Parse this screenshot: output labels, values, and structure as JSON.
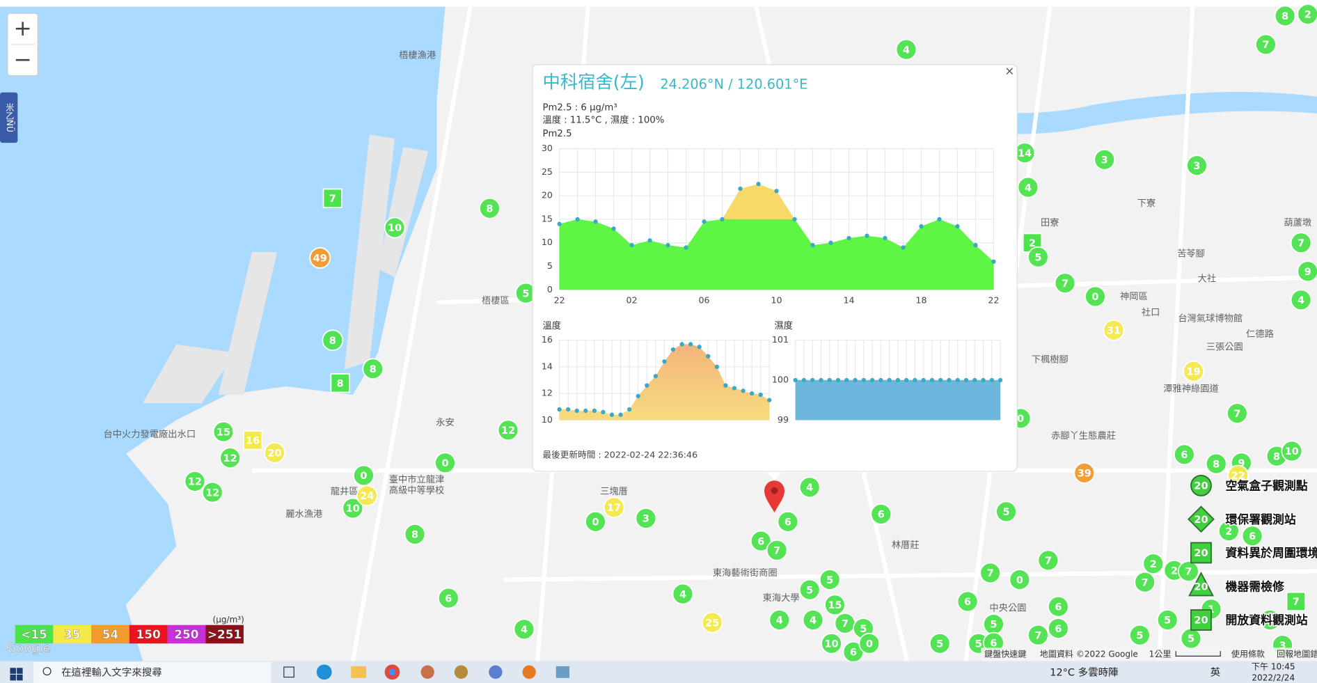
{
  "map": {
    "side_tab": "米乙ÑÜ",
    "zoom_in": "+",
    "zoom_out": "−",
    "google_logo": "Google",
    "labels": [
      "梧棲漁港",
      "梧棲區",
      "永安",
      "台中火力發電廠出水口",
      "龍井區",
      "臺中市立龍津",
      "高級中等學校",
      "麗水漁港",
      "三塊厝",
      "東海藝術街商圈",
      "東海大學",
      "林厝莊",
      "中央公園",
      "神岡區",
      "社口",
      "下寮",
      "田寮",
      "大社",
      "三張公園",
      "下楓樹腳",
      "赤腳丫生態農莊",
      "仁德路",
      "台灣氣球博物館",
      "苦苓腳",
      "潭雅神綠園道",
      "葫蘆墩"
    ],
    "markers": [
      {
        "value": 4
      },
      {
        "value": 8
      },
      {
        "value": 2
      },
      {
        "value": 7
      },
      {
        "value": 14
      },
      {
        "value": 3
      },
      {
        "value": 3
      },
      {
        "value": 4
      },
      {
        "value": 2,
        "shape": "square"
      },
      {
        "value": 5
      },
      {
        "value": 7
      },
      {
        "value": 9
      },
      {
        "value": 4
      },
      {
        "value": 7
      },
      {
        "value": 0
      },
      {
        "value": 31
      },
      {
        "value": 19
      },
      {
        "value": 7
      },
      {
        "value": 0
      },
      {
        "value": 6
      },
      {
        "value": 8
      },
      {
        "value": 9
      },
      {
        "value": 8
      },
      {
        "value": 10
      },
      {
        "value": 22
      },
      {
        "value": 39
      },
      {
        "value": 5
      },
      {
        "value": 7
      },
      {
        "value": 7
      },
      {
        "value": 0
      },
      {
        "value": 6
      },
      {
        "value": 5
      },
      {
        "value": 6
      },
      {
        "value": 7
      },
      {
        "value": 6
      },
      {
        "value": 5
      },
      {
        "value": 5
      },
      {
        "value": 6
      },
      {
        "value": 2
      },
      {
        "value": 6
      },
      {
        "value": 2
      },
      {
        "value": 2
      },
      {
        "value": 7
      },
      {
        "value": 7
      },
      {
        "value": 1
      },
      {
        "value": 5
      },
      {
        "value": 5
      },
      {
        "value": 5
      },
      {
        "value": 3
      },
      {
        "value": 7,
        "shape": "square"
      },
      {
        "value": 7
      },
      {
        "value": 6
      },
      {
        "value": 4
      },
      {
        "value": 6
      },
      {
        "value": 6
      },
      {
        "value": 7
      },
      {
        "value": 5
      },
      {
        "value": 5
      },
      {
        "value": 15
      },
      {
        "value": 4
      },
      {
        "value": 4
      },
      {
        "value": 7
      },
      {
        "value": 5
      },
      {
        "value": 10
      },
      {
        "value": 6
      },
      {
        "value": 0
      },
      {
        "value": 4
      },
      {
        "value": 25
      },
      {
        "value": 3
      },
      {
        "value": 17
      },
      {
        "value": 0
      },
      {
        "value": 4
      },
      {
        "value": 6
      },
      {
        "value": 8
      },
      {
        "value": 10
      },
      {
        "value": 24
      },
      {
        "value": 0
      },
      {
        "value": 0
      },
      {
        "value": 12
      },
      {
        "value": 5
      },
      {
        "value": 8
      },
      {
        "value": 10
      },
      {
        "value": 7,
        "shape": "square"
      },
      {
        "value": 49
      },
      {
        "value": 8
      },
      {
        "value": 8
      },
      {
        "value": 8,
        "shape": "square"
      },
      {
        "value": 15
      },
      {
        "value": 16,
        "shape": "square"
      },
      {
        "value": 20
      },
      {
        "value": 12
      },
      {
        "value": 12
      },
      {
        "value": 12
      }
    ],
    "legend": {
      "unit": "(μg/m³)",
      "items": [
        {
          "value": 15,
          "label": "<15",
          "color": "#4ce34c"
        },
        {
          "value": 35,
          "label": "35",
          "color": "#f5e94a"
        },
        {
          "value": 54,
          "label": "54",
          "color": "#f39a2d"
        },
        {
          "value": 150,
          "label": "150",
          "color": "#e8141e"
        },
        {
          "value": 250,
          "label": "250",
          "color": "#c82fd8"
        },
        {
          "value": 251,
          "label": ">251",
          "color": "#8b1018"
        }
      ]
    },
    "side_legend": [
      {
        "icon": "circle",
        "icon_label": "20",
        "label": "空氣盒子觀測點"
      },
      {
        "icon": "diamond",
        "icon_label": "20",
        "label": "環保署觀測站"
      },
      {
        "icon": "square",
        "icon_label": "20",
        "label": "資料異於周圍環境"
      },
      {
        "icon": "triangle",
        "icon_label": "20",
        "label": "機器需檢修"
      },
      {
        "icon": "square",
        "icon_label": "20",
        "label": "開放資料觀測站"
      }
    ],
    "footer": [
      "鍵盤快速鍵",
      "地圖資料 ©2022 Google",
      "1公里",
      "使用條款",
      "回報地圖錯誤"
    ]
  },
  "popup": {
    "title": "中科宿舍(左)",
    "coords": "24.206°N / 120.601°E",
    "pm_line": "Pm2.5 : 6 μg/m³",
    "temp_line": "溫度 : 11.5°C , 濕度 : 100%",
    "close": "×",
    "updated": "最後更新時間 : 2022-02-24 22:36:46",
    "pm_chart": {
      "type": "area",
      "title": "Pm2.5",
      "categories": [
        "22",
        null,
        null,
        null,
        "02",
        null,
        null,
        null,
        "06",
        null,
        null,
        null,
        "10",
        null,
        null,
        null,
        "14",
        null,
        null,
        null,
        "18",
        null,
        null,
        null,
        "22"
      ],
      "values": [
        14,
        15,
        14.5,
        13,
        9.5,
        10.5,
        9.5,
        9,
        14.5,
        15,
        21.5,
        22.5,
        21,
        15,
        9.5,
        10,
        11,
        11.5,
        11,
        9,
        13.5,
        15,
        13.5,
        9.5,
        6
      ],
      "ylim": [
        0,
        30
      ],
      "yticks": [
        0,
        5,
        10,
        15,
        20,
        25,
        30
      ],
      "color_threshold": 15,
      "color": "#5ef545",
      "color_above": "#f7d96a",
      "grid": true
    },
    "temp_chart": {
      "type": "area",
      "title": "溫度",
      "values": [
        10.8,
        10.8,
        10.7,
        10.7,
        10.7,
        10.6,
        10.4,
        10.4,
        10.8,
        11.8,
        12.6,
        13.3,
        14.4,
        15.3,
        15.7,
        15.7,
        15.5,
        14.8,
        14,
        12.6,
        12.4,
        12.2,
        12,
        11.9,
        11.5
      ],
      "ylim": [
        10,
        16
      ],
      "yticks": [
        10,
        12,
        14,
        16
      ],
      "color": "#f3b47c",
      "color_bottom": "#f8dc7e",
      "grid": true
    },
    "hum_chart": {
      "type": "area",
      "title": "濕度",
      "values": [
        100,
        100,
        100,
        100,
        100,
        100,
        100,
        100,
        100,
        100,
        100,
        100,
        100,
        100,
        100,
        100,
        100,
        100,
        100,
        100,
        100,
        100,
        100,
        100,
        100
      ],
      "ylim": [
        99,
        101
      ],
      "yticks": [
        99,
        100,
        101
      ],
      "color": "#6bb8dc",
      "grid": true
    }
  },
  "taskbar": {
    "search": "在這裡輸入文字來搜尋",
    "weather": "12°C 多雲時陣",
    "ime": "英",
    "time": "下午 10:45",
    "date": "2022/2/24"
  }
}
